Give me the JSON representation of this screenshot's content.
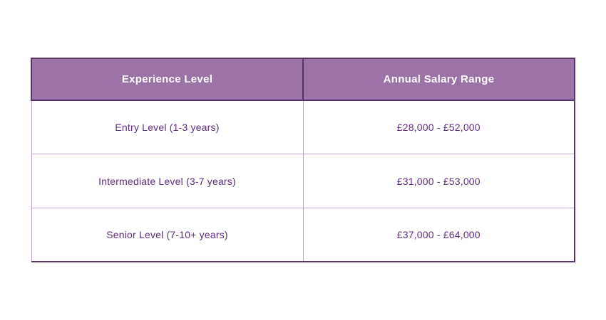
{
  "chart_data": {
    "type": "table",
    "columns": [
      "Experience Level",
      "Annual Salary Range"
    ],
    "rows": [
      [
        "Entry Level (1-3 years)",
        "£28,000 - £52,000"
      ],
      [
        "Intermediate Level (3-7 years)",
        "£31,000 - £53,000"
      ],
      [
        "Senior Level (7-10+ years)",
        "£37,000 - £64,000"
      ]
    ]
  },
  "colors": {
    "header_background": "#9c73a9",
    "header_text": "#ffffff",
    "cell_text": "#5e2e7d",
    "outer_border_dark": "#5a3368",
    "inner_border_light": "#bda5cb",
    "page_background": "#ffffff"
  }
}
